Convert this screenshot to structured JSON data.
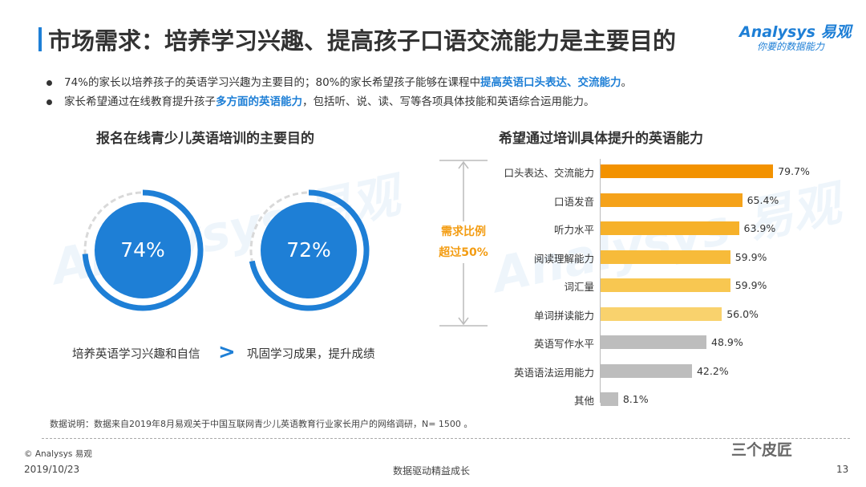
{
  "title": "市场需求：培养学习兴趣、提高孩子口语交流能力是主要目的",
  "logo": {
    "main": "Analysys 易观",
    "sub": "你要的数据能力"
  },
  "bullets": [
    {
      "pre": "74%的家长以培养孩子的英语学习兴趣为主要目的；80%的家长希望孩子能够在课程中",
      "hl": "提高英语口头表达、交流能力",
      "post": "。"
    },
    {
      "pre": "家长希望通过在线教育提升孩子",
      "hl": "多方面的英语能力",
      "post": "，包括听、说、读、写等各项具体技能和英语综合运用能力。"
    }
  ],
  "left_title": "报名在线青少儿英语培训的主要目的",
  "right_title": "希望通过培训具体提升的英语能力",
  "annotation": {
    "line1": "需求比例",
    "line2": "超过50%"
  },
  "note": "数据说明：数据来自2019年8月易观关于中国互联网青少儿英语教育行业家长用户的网络调研，N= 1500 。",
  "copyright": "© Analysys 易观",
  "date": "2019/10/23",
  "footer_center": "数据驱动精益成长",
  "page_number": "13",
  "wechat": "三个皮匠",
  "colors": {
    "accent": "#1e7fd6",
    "orange_dark": "#f39200",
    "gray": "#bdbdbd"
  },
  "chart_data": [
    {
      "type": "pie",
      "title": "报名在线青少儿英语培训的主要目的",
      "series": [
        {
          "name": "培养英语学习兴趣和自信",
          "value": 74,
          "label": "74%"
        },
        {
          "name": "巩固学习成果，提升成绩",
          "value": 72,
          "label": "72%"
        }
      ],
      "separator": ">"
    },
    {
      "type": "bar",
      "orientation": "horizontal",
      "title": "希望通过培训具体提升的英语能力",
      "categories": [
        "口头表达、交流能力",
        "口语发音",
        "听力水平",
        "阅读理解能力",
        "词汇量",
        "单词拼读能力",
        "英语写作水平",
        "英语语法运用能力",
        "其他"
      ],
      "values": [
        79.7,
        65.4,
        63.9,
        59.9,
        59.9,
        56.0,
        48.9,
        42.2,
        8.1
      ],
      "labels": [
        "79.7%",
        "65.4%",
        "63.9%",
        "59.9%",
        "59.9%",
        "56.0%",
        "48.9%",
        "42.2%",
        "8.1%"
      ],
      "colors": [
        "#f39200",
        "#f5a21a",
        "#f6b12a",
        "#f7bb3a",
        "#f8c751",
        "#f9d26d",
        "#bdbdbd",
        "#bdbdbd",
        "#bdbdbd"
      ],
      "xlim": [
        0,
        100
      ]
    }
  ]
}
